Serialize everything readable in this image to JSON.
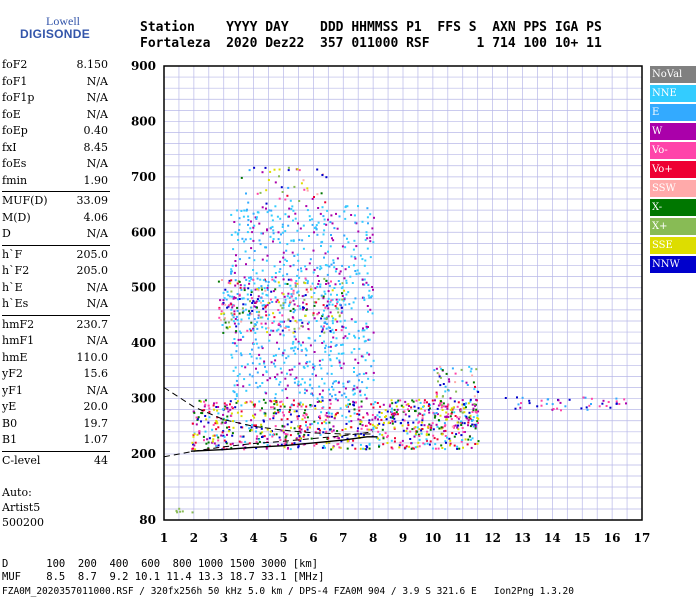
{
  "logo": {
    "top": "Lowell",
    "main": "DIGISONDE"
  },
  "header": {
    "line1": "Station    YYYY DAY    DDD HHMMSS P1  FFS S  AXN PPS IGA PS",
    "line2": "Fortaleza  2020 Dez22  357 011000 RSF      1 714 100 10+ 11"
  },
  "params": [
    {
      "name": "foF2",
      "value": "8.150"
    },
    {
      "name": "foF1",
      "value": "N/A"
    },
    {
      "name": "foF1p",
      "value": "N/A"
    },
    {
      "name": "foE",
      "value": "N/A"
    },
    {
      "name": "foEp",
      "value": "0.40"
    },
    {
      "name": "fxI",
      "value": "8.45"
    },
    {
      "name": "foEs",
      "value": "N/A"
    },
    {
      "name": "fmin",
      "value": "1.90"
    },
    {
      "name": "MUF(D)",
      "value": "33.09"
    },
    {
      "name": "M(D)",
      "value": "4.06"
    },
    {
      "name": "D",
      "value": "N/A"
    },
    {
      "name": "h`F",
      "value": "205.0"
    },
    {
      "name": "h`F2",
      "value": "205.0"
    },
    {
      "name": "h`E",
      "value": "N/A"
    },
    {
      "name": "h`Es",
      "value": "N/A"
    },
    {
      "name": "hmF2",
      "value": "230.7"
    },
    {
      "name": "hmF1",
      "value": "N/A"
    },
    {
      "name": "hmE",
      "value": "110.0"
    },
    {
      "name": "yF2",
      "value": "15.6"
    },
    {
      "name": "yF1",
      "value": "N/A"
    },
    {
      "name": "yE",
      "value": "20.0"
    },
    {
      "name": "B0",
      "value": "19.7"
    },
    {
      "name": "B1",
      "value": "1.07"
    },
    {
      "name": "C-level",
      "value": "44"
    }
  ],
  "auto": {
    "line1": "Auto:",
    "line2": "Artist5",
    "line3": "500200"
  },
  "legend": [
    {
      "label": "NoVal",
      "color": "#808080"
    },
    {
      "label": "NNE",
      "color": "#33ccff"
    },
    {
      "label": "E",
      "color": "#33aaff"
    },
    {
      "label": "W",
      "color": "#aa00aa"
    },
    {
      "label": "Vo-",
      "color": "#ff44aa"
    },
    {
      "label": "Vo+",
      "color": "#ee0033"
    },
    {
      "label": "SSW",
      "color": "#ffaaaa"
    },
    {
      "label": "X-",
      "color": "#007700"
    },
    {
      "label": "X+",
      "color": "#88bb55"
    },
    {
      "label": "SSE",
      "color": "#dddd00"
    },
    {
      "label": "NNW",
      "color": "#0000cc"
    }
  ],
  "bottom": {
    "line1": "D      100  200  400  600  800 1000 1500 3000 [km]",
    "line2": "MUF    8.5  8.7  9.2 10.1 11.4 13.3 18.7 33.1 [MHz]"
  },
  "footer": "FZA0M_2020357011000.RSF / 320fx256h 50 kHz 5.0 km / DPS-4 FZA0M 904 / 3.9 S 321.6 E   Ion2Png 1.3.20",
  "chart_data": {
    "type": "scatter",
    "title": "",
    "xlabel": "",
    "ylabel": "",
    "xlim": [
      1,
      17
    ],
    "ylim": [
      80,
      900
    ],
    "x_ticks": [
      1,
      2,
      3,
      4,
      5,
      6,
      7,
      8,
      9,
      10,
      11,
      12,
      13,
      14,
      15,
      16,
      17
    ],
    "y_ticks": [
      80,
      200,
      300,
      400,
      500,
      600,
      700,
      800,
      900
    ],
    "grid": true,
    "legend_position": "right",
    "regions": [
      {
        "name": "F2 trace band",
        "x": [
          1.9,
          11.5
        ],
        "y": [
          210,
          300
        ],
        "density": 1.0
      },
      {
        "name": "NNE/E oblique upper",
        "x": [
          3.2,
          8.0
        ],
        "y": [
          300,
          650
        ],
        "density": 0.45
      },
      {
        "name": "oblique echoes 450-500",
        "x": [
          2.8,
          7.0
        ],
        "y": [
          420,
          520
        ],
        "density": 0.7
      },
      {
        "name": "high band 650-720",
        "x": [
          3.5,
          6.5
        ],
        "y": [
          640,
          720
        ],
        "density": 0.2
      },
      {
        "name": "spread 10-11.5",
        "x": [
          10.0,
          11.5
        ],
        "y": [
          250,
          360
        ],
        "density": 0.6
      },
      {
        "name": "far echoes 13-16.5",
        "x": [
          12.3,
          16.5
        ],
        "y": [
          280,
          305
        ],
        "density": 0.45
      },
      {
        "name": "E layer X-",
        "x": [
          1.3,
          2.0
        ],
        "y": [
          95,
          105
        ],
        "density": 0.9
      }
    ],
    "curves": [
      {
        "name": "dashed upper",
        "style": "dashed",
        "points": [
          [
            1.0,
            320
          ],
          [
            2.0,
            285
          ],
          [
            3.0,
            262
          ],
          [
            4.0,
            250
          ],
          [
            5.0,
            243
          ],
          [
            6.0,
            238
          ],
          [
            7.0,
            236
          ],
          [
            8.0,
            236
          ]
        ]
      },
      {
        "name": "dashed lower",
        "style": "dashed",
        "points": [
          [
            1.0,
            195
          ],
          [
            2.0,
            205
          ],
          [
            3.0,
            213
          ],
          [
            4.0,
            219
          ],
          [
            5.0,
            223
          ],
          [
            6.0,
            228
          ],
          [
            7.0,
            233
          ],
          [
            8.0,
            240
          ]
        ]
      },
      {
        "name": "profile",
        "style": "solid",
        "points": [
          [
            1.9,
            205
          ],
          [
            3.0,
            208
          ],
          [
            4.0,
            212
          ],
          [
            5.0,
            215
          ],
          [
            6.0,
            220
          ],
          [
            7.0,
            225
          ],
          [
            7.8,
            231
          ],
          [
            8.15,
            231
          ]
        ]
      }
    ]
  }
}
